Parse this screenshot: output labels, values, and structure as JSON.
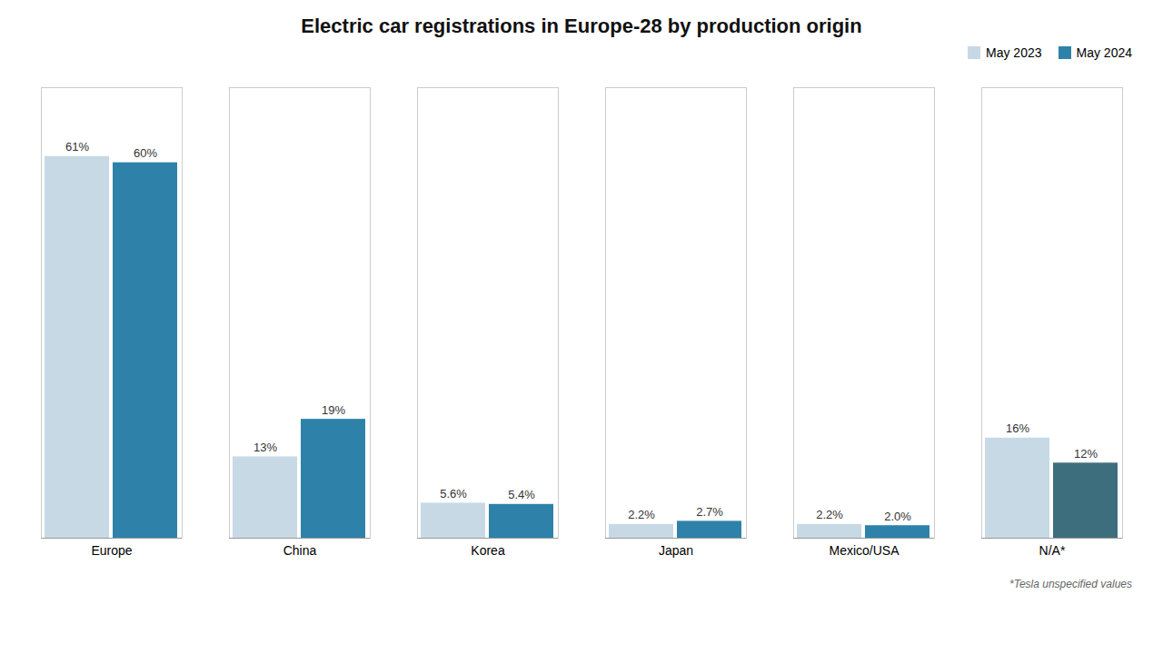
{
  "chart_data": {
    "type": "bar",
    "title": "Electric car registrations in Europe-28 by production origin",
    "categories": [
      "Europe",
      "China",
      "Korea",
      "Japan",
      "Mexico/USA",
      "N/A*"
    ],
    "series": [
      {
        "name": "May 2023",
        "color": "#c8d9e6",
        "values": [
          61,
          13,
          5.6,
          2.2,
          2.2,
          16
        ],
        "value_labels": [
          "61%",
          "13%",
          "5.6%",
          "2.2%",
          "2.2%",
          "16%"
        ]
      },
      {
        "name": "May 2024",
        "color": "#2e82aa",
        "colors": [
          "#2e82aa",
          "#2e82aa",
          "#2e82aa",
          "#2e82aa",
          "#2e82aa",
          "#3d6e7e"
        ],
        "values": [
          60,
          19,
          5.4,
          2.7,
          2.0,
          12
        ],
        "value_labels": [
          "60%",
          "19%",
          "5.4%",
          "2.7%",
          "2.0%",
          "12%"
        ]
      }
    ],
    "ylim": [
      0,
      72
    ],
    "data_labels": true,
    "tick_labels": "x",
    "grid": false,
    "legend": "top-right",
    "annotations": [
      "*Tesla unspecified values"
    ]
  }
}
